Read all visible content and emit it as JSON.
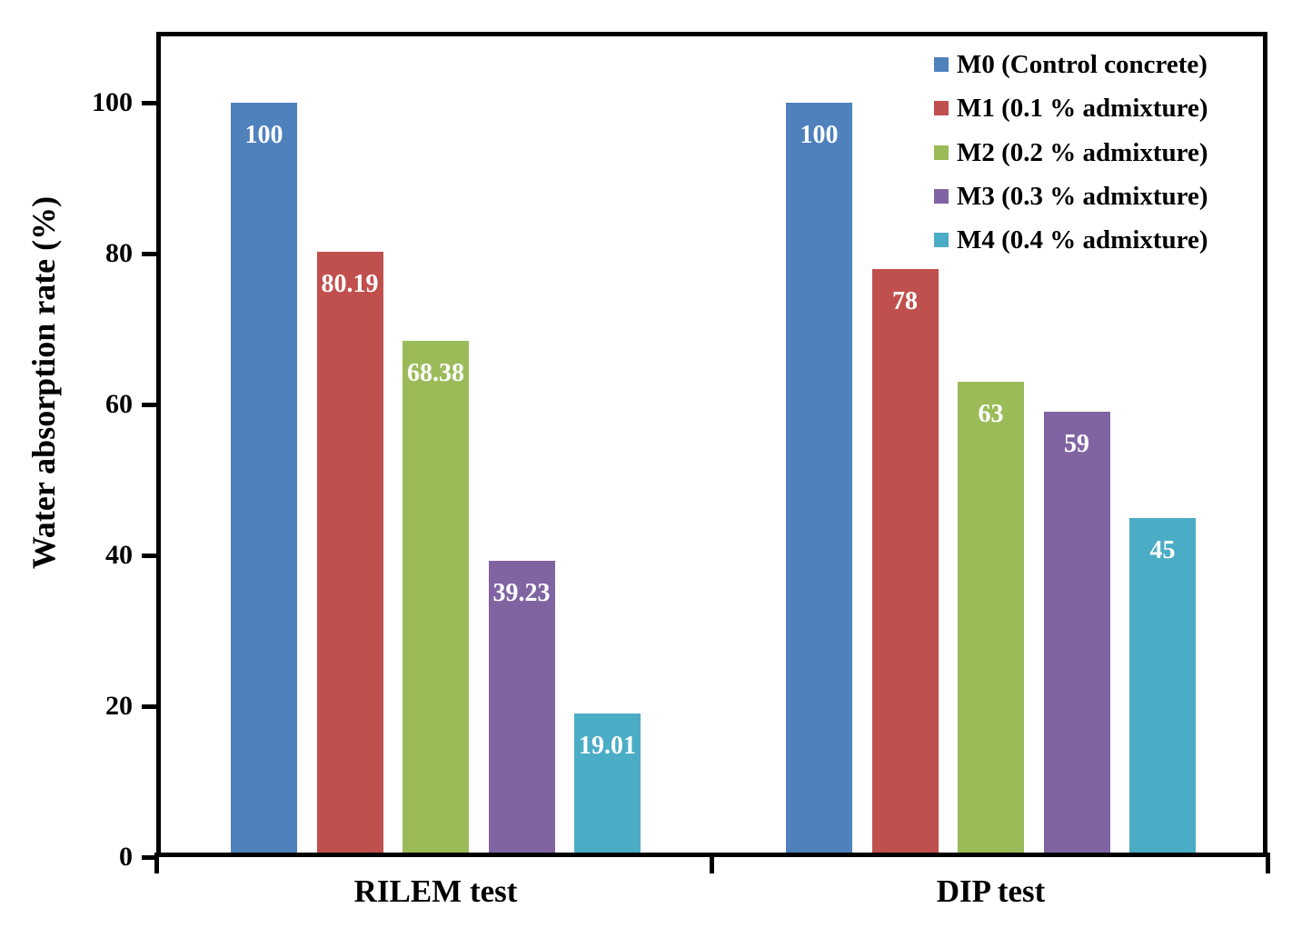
{
  "chart_data": {
    "type": "bar",
    "title": "",
    "xlabel": "",
    "ylabel": "Water absorption rate (%)",
    "ylim": [
      0,
      109
    ],
    "yticks": [
      0,
      20,
      40,
      60,
      80,
      100
    ],
    "grid": false,
    "legend_position": "top-right-inside",
    "categories": [
      "RILEM test",
      "DIP test"
    ],
    "series": [
      {
        "name": "M0 (Control concrete)",
        "color": "#4F81BD",
        "values": [
          100,
          100
        ],
        "labels": [
          "100",
          "100"
        ]
      },
      {
        "name": "M1 (0.1 % admixture)",
        "color": "#C0504D",
        "values": [
          80.19,
          78
        ],
        "labels": [
          "80.19",
          "78"
        ]
      },
      {
        "name": "M2 (0.2 % admixture)",
        "color": "#9BBB59",
        "values": [
          68.38,
          63
        ],
        "labels": [
          "68.38",
          "63"
        ]
      },
      {
        "name": "M3 (0.3 % admixture)",
        "color": "#8064A2",
        "values": [
          39.23,
          59
        ],
        "labels": [
          "39.23",
          "59"
        ]
      },
      {
        "name": "M4 (0.4 % admixture)",
        "color": "#4BACC6",
        "values": [
          19.01,
          45
        ],
        "labels": [
          "19.01",
          "45"
        ]
      }
    ],
    "bar_label_color": "#FFFFFF",
    "axis_color": "#000000",
    "text_color": "#000000",
    "background_color": "#FFFFFF"
  }
}
